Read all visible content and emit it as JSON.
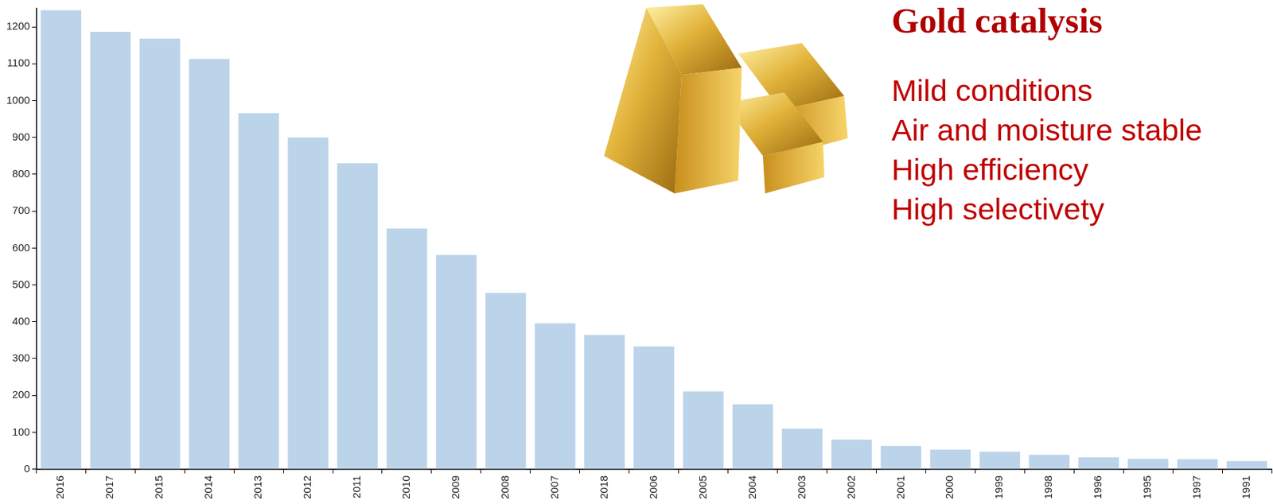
{
  "chart_data": {
    "type": "bar",
    "title": "Gold catalysis",
    "annotations": [
      "Mild conditions",
      "Air and moisture stable",
      "High efficiency",
      "High selectivety"
    ],
    "categories": [
      "2016",
      "2017",
      "2015",
      "2014",
      "2013",
      "2012",
      "2011",
      "2010",
      "2009",
      "2008",
      "2007",
      "2018",
      "2006",
      "2005",
      "2004",
      "2003",
      "2002",
      "2001",
      "2000",
      "1999",
      "1998",
      "1996",
      "1995",
      "1997",
      "1991"
    ],
    "values": [
      1245,
      1187,
      1168,
      1113,
      966,
      900,
      830,
      653,
      581,
      478,
      396,
      364,
      333,
      211,
      176,
      110,
      80,
      63,
      53,
      47,
      39,
      32,
      28,
      27,
      22
    ],
    "color": "#bcd4ea",
    "ylim": [
      0,
      1250
    ],
    "yticks": [
      0,
      100,
      200,
      300,
      400,
      500,
      600,
      700,
      800,
      900,
      1000,
      1100,
      1200
    ],
    "grid": false
  }
}
